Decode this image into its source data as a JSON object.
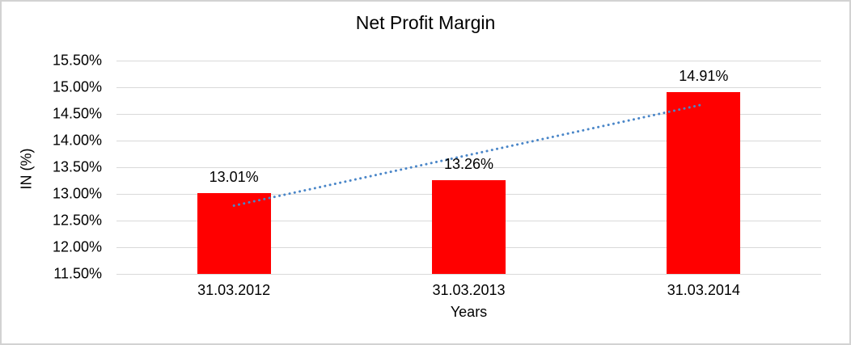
{
  "chart_data": {
    "type": "bar",
    "title": "Net Profit Margin",
    "xlabel": "Years",
    "ylabel": "IN (%)",
    "categories": [
      "31.03.2012",
      "31.03.2013",
      "31.03.2014"
    ],
    "values": [
      13.01,
      13.26,
      14.91
    ],
    "data_labels": [
      "13.01%",
      "13.26%",
      "14.91%"
    ],
    "ylim": [
      11.5,
      15.5
    ],
    "ytick_step": 0.5,
    "ytick_labels": [
      "15.50%",
      "15.00%",
      "14.50%",
      "14.00%",
      "13.50%",
      "13.00%",
      "12.50%",
      "12.00%",
      "11.50%"
    ],
    "grid": "horizontal-only",
    "legend": "none",
    "colors": {
      "bar": "#FF0000",
      "gridline": "#D9D9D9",
      "trendline": "#4A86C8",
      "text": "#000000",
      "frame_border": "#D2D2D2",
      "background": "#FFFFFF"
    },
    "trendline": {
      "type": "linear",
      "style": "dotted",
      "start_value_pct": 12.78,
      "end_value_pct": 14.68
    }
  }
}
